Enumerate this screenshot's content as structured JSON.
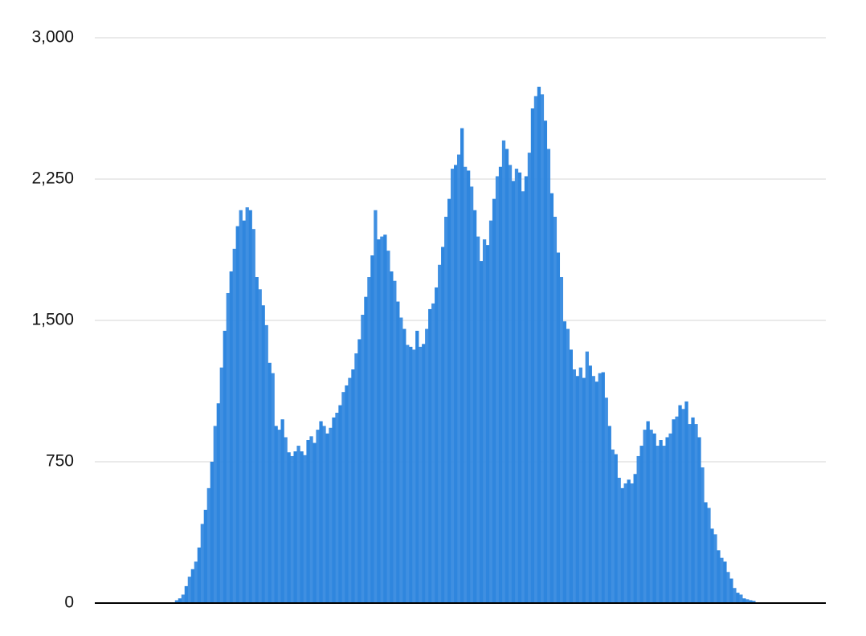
{
  "chart_data": {
    "type": "bar",
    "color": "#2f86de",
    "grid": true,
    "ylim": [
      0,
      3000
    ],
    "yticks": [
      0,
      {
        "value": 750,
        "label": "750"
      },
      {
        "value": 1500,
        "label": "1,500"
      },
      {
        "value": 2250,
        "label": "2,250"
      },
      {
        "value": 3000,
        "label": "3,000"
      }
    ],
    "values": [
      0,
      0,
      0,
      0,
      0,
      0,
      0,
      0,
      0,
      0,
      0,
      0,
      0,
      0,
      0,
      0,
      0,
      0,
      0,
      0,
      0,
      0,
      0,
      0,
      0,
      15,
      25,
      45,
      90,
      140,
      180,
      220,
      295,
      420,
      495,
      610,
      750,
      940,
      1060,
      1250,
      1445,
      1645,
      1760,
      1880,
      2000,
      2085,
      2030,
      2100,
      2085,
      1985,
      1730,
      1665,
      1580,
      1475,
      1275,
      1220,
      940,
      920,
      975,
      880,
      800,
      780,
      805,
      835,
      805,
      785,
      865,
      885,
      850,
      920,
      965,
      940,
      900,
      930,
      985,
      1010,
      1050,
      1120,
      1155,
      1195,
      1240,
      1325,
      1400,
      1530,
      1625,
      1730,
      1845,
      2085,
      1930,
      1945,
      1955,
      1870,
      1760,
      1710,
      1600,
      1515,
      1455,
      1370,
      1360,
      1345,
      1445,
      1360,
      1375,
      1455,
      1560,
      1590,
      1675,
      1795,
      1890,
      2050,
      2145,
      2305,
      2325,
      2380,
      2520,
      2315,
      2295,
      2210,
      2085,
      1945,
      1815,
      1930,
      1900,
      2030,
      2145,
      2265,
      2315,
      2455,
      2410,
      2325,
      2240,
      2305,
      2285,
      2185,
      2265,
      2390,
      2625,
      2690,
      2740,
      2700,
      2560,
      2410,
      2175,
      2050,
      1860,
      1730,
      1495,
      1455,
      1345,
      1240,
      1205,
      1250,
      1195,
      1335,
      1260,
      1205,
      1175,
      1220,
      1225,
      1090,
      940,
      815,
      790,
      665,
      610,
      635,
      655,
      635,
      685,
      780,
      835,
      920,
      965,
      920,
      900,
      835,
      865,
      835,
      880,
      900,
      975,
      990,
      1050,
      1030,
      1070,
      950,
      985,
      950,
      880,
      720,
      535,
      505,
      395,
      365,
      280,
      240,
      220,
      165,
      130,
      80,
      55,
      45,
      25,
      20,
      15,
      12,
      0,
      0,
      0,
      0,
      0,
      0,
      0,
      0,
      0,
      0,
      0,
      0,
      0,
      0,
      0,
      0,
      0,
      0,
      0,
      0,
      0,
      0
    ]
  }
}
